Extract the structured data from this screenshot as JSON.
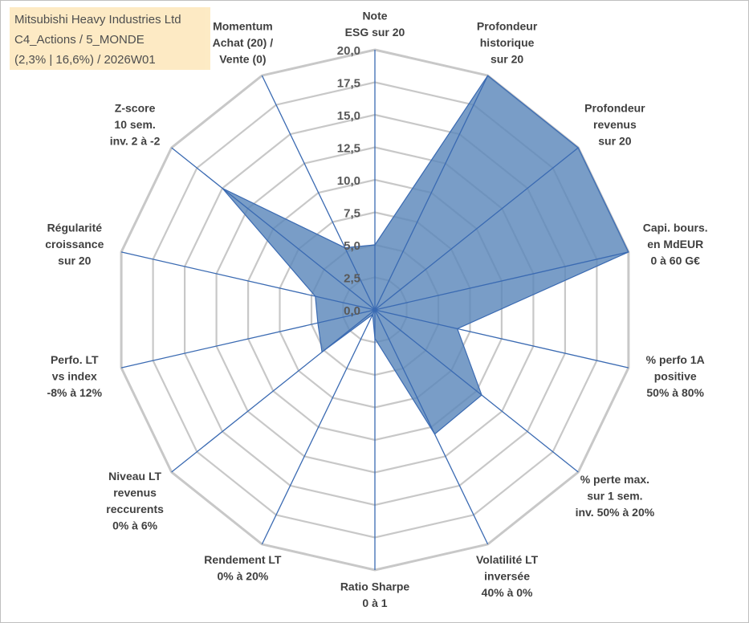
{
  "title_box": {
    "line1": "Mitsubishi Heavy Industries Ltd",
    "line2": "C4_Actions / 5_MONDE",
    "line3": "(2,3% | 16,6%) / 2026W01"
  },
  "colors": {
    "fill": "#5b87bb",
    "stroke": "#3a6ab2",
    "grid": "#c8c8c8",
    "axis": "#3a6ab2",
    "title_bg": "#fde9c0"
  },
  "chart_data": {
    "type": "radar",
    "rmin": 0,
    "rmax": 20,
    "tick_step": 2.5,
    "tick_labels": [
      "0,0",
      "2,5",
      "5,0",
      "7,5",
      "10,0",
      "12,5",
      "15,0",
      "17,5",
      "20,0"
    ],
    "axes": [
      {
        "label_lines": [
          "Note",
          "ESG sur 20"
        ],
        "value": 5
      },
      {
        "label_lines": [
          "Profondeur",
          "historique",
          "sur 20"
        ],
        "value": 20
      },
      {
        "label_lines": [
          "Profondeur",
          "revenus",
          "sur 20"
        ],
        "value": 20
      },
      {
        "label_lines": [
          "Capi. bours.",
          "en MdEUR",
          "0 à 60 G€"
        ],
        "value": 20
      },
      {
        "label_lines": [
          "% perfo 1A",
          "positive",
          "50% à 80%"
        ],
        "value": 6.5
      },
      {
        "label_lines": [
          "% perte max.",
          "sur 1 sem.",
          "inv. 50% à 20%"
        ],
        "value": 10.5
      },
      {
        "label_lines": [
          "Volatilité LT",
          "inversée",
          "40% à 0%"
        ],
        "value": 10.6
      },
      {
        "label_lines": [
          "Ratio Sharpe",
          "0 à 1"
        ],
        "value": 2.2
      },
      {
        "label_lines": [
          "Rendement LT",
          "0% à 20%"
        ],
        "value": 0.4
      },
      {
        "label_lines": [
          "Niveau LT",
          "revenus",
          "reccurents",
          "0% à 6%"
        ],
        "value": 5.2
      },
      {
        "label_lines": [
          "Perfo. LT",
          "vs index",
          "-8% à 12%"
        ],
        "value": 4.5
      },
      {
        "label_lines": [
          "Régularité",
          "croissance",
          "sur 20"
        ],
        "value": 4.7
      },
      {
        "label_lines": [
          "Z-score",
          "10 sem.",
          "inv. 2 à -2"
        ],
        "value": 15
      },
      {
        "label_lines": [
          "Momentum",
          "Achat (20) /",
          "Vente (0)"
        ],
        "value": 5.3
      }
    ]
  }
}
